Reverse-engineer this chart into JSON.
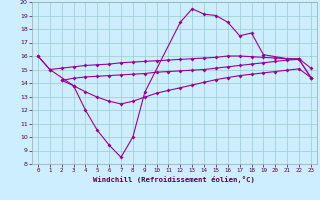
{
  "xlabel": "Windchill (Refroidissement éolien,°C)",
  "color": "#990099",
  "bg_color": "#cceeff",
  "grid_color": "#99cccc",
  "ylim": [
    8,
    20
  ],
  "xlim": [
    -0.5,
    23.5
  ],
  "yticks": [
    8,
    9,
    10,
    11,
    12,
    13,
    14,
    15,
    16,
    17,
    18,
    19,
    20
  ],
  "xticks": [
    0,
    1,
    2,
    3,
    4,
    5,
    6,
    7,
    8,
    9,
    10,
    11,
    12,
    13,
    14,
    15,
    16,
    17,
    18,
    19,
    20,
    21,
    22,
    23
  ],
  "line_main_x": [
    0,
    1,
    3,
    4,
    5,
    6,
    7,
    8,
    9,
    12,
    13,
    14,
    15,
    16,
    17,
    18,
    19,
    21,
    22,
    23
  ],
  "line_main_y": [
    16.0,
    15.0,
    13.8,
    12.0,
    10.5,
    9.4,
    8.5,
    10.0,
    13.3,
    18.5,
    19.5,
    19.1,
    19.0,
    18.5,
    17.5,
    17.7,
    16.1,
    15.8,
    15.8,
    15.1
  ],
  "line_upper_x": [
    0,
    1,
    2,
    3,
    4,
    5,
    6,
    7,
    8,
    9,
    10,
    11,
    12,
    13,
    14,
    15,
    16,
    17,
    18,
    19,
    20,
    21,
    22,
    23
  ],
  "line_upper_y": [
    16.0,
    15.0,
    15.1,
    15.2,
    15.3,
    15.35,
    15.4,
    15.5,
    15.55,
    15.6,
    15.65,
    15.7,
    15.75,
    15.8,
    15.85,
    15.9,
    16.0,
    16.0,
    15.95,
    15.9,
    15.85,
    15.8,
    15.75,
    14.4
  ],
  "line_mid_x": [
    2,
    3,
    4,
    5,
    6,
    7,
    8,
    9,
    10,
    11,
    12,
    13,
    14,
    15,
    16,
    17,
    18,
    19,
    20,
    21,
    22,
    23
  ],
  "line_mid_y": [
    14.2,
    14.35,
    14.45,
    14.5,
    14.55,
    14.6,
    14.65,
    14.7,
    14.8,
    14.85,
    14.9,
    14.95,
    15.0,
    15.1,
    15.2,
    15.3,
    15.4,
    15.5,
    15.6,
    15.7,
    15.75,
    14.4
  ],
  "line_lower_x": [
    2,
    3,
    4,
    5,
    6,
    7,
    8,
    9,
    10,
    11,
    12,
    13,
    14,
    15,
    16,
    17,
    18,
    19,
    20,
    21,
    22,
    23
  ],
  "line_lower_y": [
    14.2,
    13.8,
    13.35,
    12.95,
    12.65,
    12.45,
    12.65,
    12.95,
    13.25,
    13.45,
    13.65,
    13.85,
    14.05,
    14.25,
    14.4,
    14.55,
    14.65,
    14.75,
    14.85,
    14.95,
    15.05,
    14.4
  ]
}
